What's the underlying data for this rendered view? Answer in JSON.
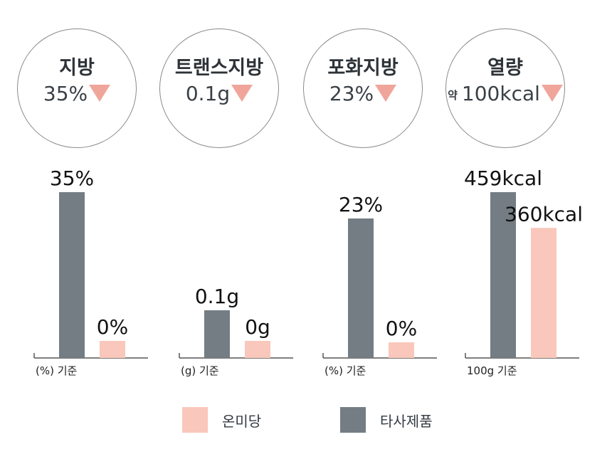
{
  "badges": [
    {
      "title": "지방",
      "prefix": "",
      "value": "35%"
    },
    {
      "title": "트랜스지방",
      "prefix": "",
      "value": "0.1g"
    },
    {
      "title": "포화지방",
      "prefix": "",
      "value": "23%"
    },
    {
      "title": "열량",
      "prefix": "약",
      "value": "100kcal"
    }
  ],
  "legend": {
    "onmidang": "온미당",
    "others": "타사제품"
  },
  "colors": {
    "onmidang": "#f9c7bb",
    "others": "#737d83",
    "arrow": "#f0a59b",
    "axis": "#555555"
  },
  "chart_data": [
    {
      "type": "bar",
      "xlabel": "(%) 기준",
      "series": [
        {
          "name": "타사제품",
          "values": [
            35
          ],
          "label": "35%"
        },
        {
          "name": "온미당",
          "values": [
            0
          ],
          "label": "0%"
        }
      ]
    },
    {
      "type": "bar",
      "xlabel": "(g) 기준",
      "series": [
        {
          "name": "타사제품",
          "values": [
            0.1
          ],
          "label": "0.1g"
        },
        {
          "name": "온미당",
          "values": [
            0
          ],
          "label": "0g"
        }
      ]
    },
    {
      "type": "bar",
      "xlabel": "(%) 기준",
      "series": [
        {
          "name": "타사제품",
          "values": [
            23
          ],
          "label": "23%"
        },
        {
          "name": "온미당",
          "values": [
            0
          ],
          "label": "0%"
        }
      ]
    },
    {
      "type": "bar",
      "xlabel": "100g 기준",
      "series": [
        {
          "name": "타사제품",
          "values": [
            459
          ],
          "label": "459kcal"
        },
        {
          "name": "온미당",
          "values": [
            360
          ],
          "label": "360kcal"
        }
      ]
    }
  ]
}
